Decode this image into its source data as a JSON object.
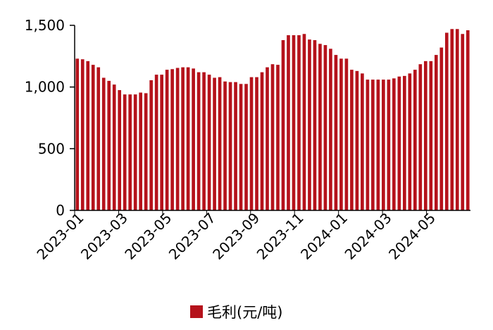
{
  "chart_data": {
    "type": "bar",
    "color": "#b5121b",
    "axis_color": "#000000",
    "ylim": [
      0,
      1500
    ],
    "y_ticks": [
      0,
      500,
      1000,
      1500
    ],
    "y_tick_labels": [
      "0",
      "500",
      "1,000",
      "1,500"
    ],
    "x_tick_labels": [
      "2023-01",
      "2023-03",
      "2023-05",
      "2023-07",
      "2023-09",
      "2023-11",
      "2024-01",
      "2024-03",
      "2024-05"
    ],
    "legend_position": "bottom",
    "grid": false,
    "series": [
      {
        "name": "毛利(元/吨)",
        "values": [
          1230,
          1225,
          1210,
          1180,
          1160,
          1075,
          1050,
          1020,
          975,
          940,
          940,
          940,
          955,
          950,
          1055,
          1100,
          1100,
          1140,
          1145,
          1155,
          1160,
          1160,
          1150,
          1120,
          1120,
          1100,
          1075,
          1080,
          1045,
          1040,
          1040,
          1025,
          1025,
          1080,
          1080,
          1120,
          1160,
          1185,
          1180,
          1380,
          1420,
          1420,
          1420,
          1430,
          1385,
          1380,
          1350,
          1340,
          1310,
          1260,
          1230,
          1230,
          1140,
          1130,
          1110,
          1060,
          1060,
          1060,
          1060,
          1060,
          1070,
          1085,
          1090,
          1110,
          1140,
          1185,
          1210,
          1210,
          1260,
          1320,
          1440,
          1470,
          1470,
          1430,
          1460
        ]
      }
    ]
  }
}
